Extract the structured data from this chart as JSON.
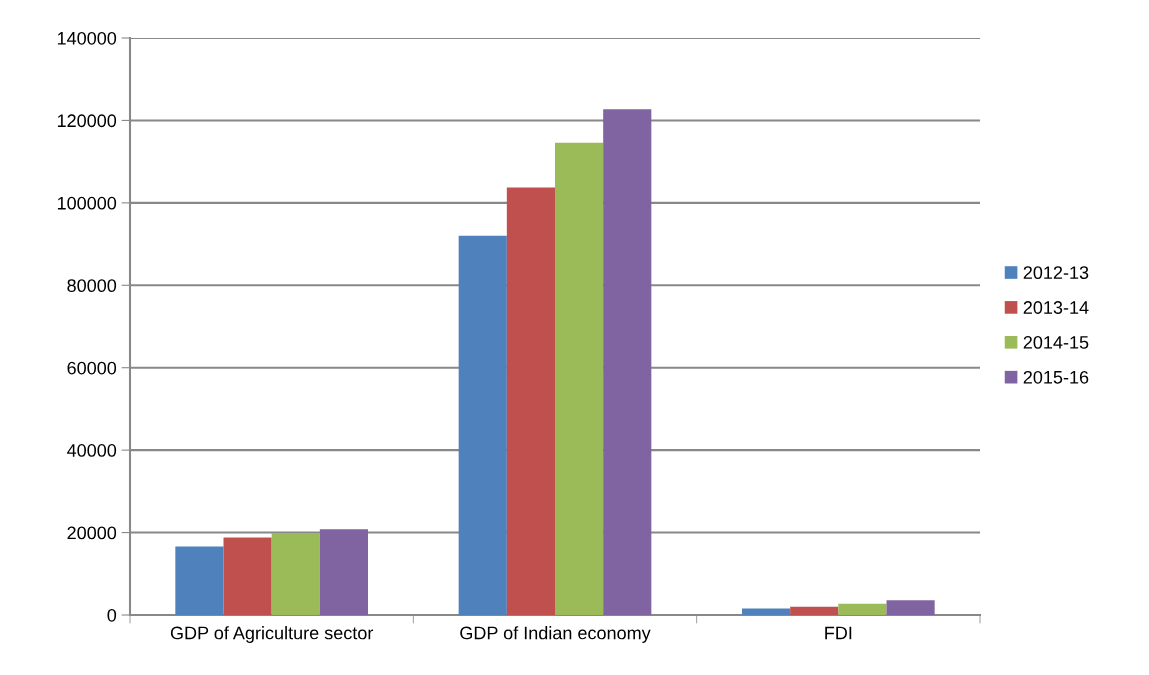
{
  "chart_data": {
    "type": "bar",
    "categories": [
      "GDP of Agriculture sector",
      "GDP of Indian economy",
      "FDI"
    ],
    "series": [
      {
        "name": "2012-13",
        "color": "#4f81bd",
        "values": [
          16600,
          92000,
          1600
        ]
      },
      {
        "name": "2013-14",
        "color": "#c0504d",
        "values": [
          18800,
          103700,
          2000
        ]
      },
      {
        "name": "2014-15",
        "color": "#9bbb59",
        "values": [
          19900,
          114600,
          2700
        ]
      },
      {
        "name": "2015-16",
        "color": "#8064a2",
        "values": [
          20800,
          122700,
          3600
        ]
      }
    ],
    "ylim": [
      0,
      140000
    ],
    "yticks": [
      0,
      20000,
      40000,
      60000,
      80000,
      100000,
      120000,
      140000
    ],
    "grid": "y",
    "legend": "right"
  }
}
